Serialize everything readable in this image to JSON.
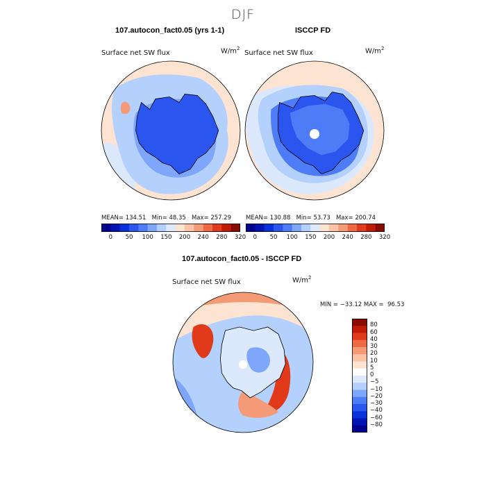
{
  "title": "DJF",
  "panels": {
    "model": {
      "title": "107.autocon_fact0.05 (yrs 1-1)",
      "variable": "Surface net SW flux",
      "units_base": "W/m",
      "units_exp": "2",
      "mean_label": "MEAN=",
      "mean": "134.51",
      "min_label": "Min=",
      "min": "48.35",
      "max_label": "Max=",
      "max": "257.29"
    },
    "obs": {
      "title": "ISCCP FD",
      "variable": "Surface net SW flux",
      "units_base": "W/m",
      "units_exp": "2",
      "mean_label": "MEAN=",
      "mean": "130.88",
      "min_label": "Min=",
      "min": "53.73",
      "max_label": "Max=",
      "max": "200.74"
    },
    "diff": {
      "title": "107.autocon_fact0.05 - ISCCP FD",
      "variable": "Surface net SW flux",
      "units_base": "W/m",
      "units_exp": "2",
      "stats": "MIN = −33.12 MAX =  96.53"
    }
  },
  "colorbars": {
    "abs": {
      "ticks": [
        "0",
        "50",
        "100",
        "150",
        "200",
        "240",
        "280",
        "320"
      ],
      "colors": [
        "#00008f",
        "#0014b4",
        "#0a32dc",
        "#2a55ee",
        "#4e7cf6",
        "#7ea6fb",
        "#b4d0fc",
        "#dce9fd",
        "#fde4d2",
        "#fbc3a6",
        "#f59a76",
        "#ee6a44",
        "#e03a1a",
        "#c11a06",
        "#8a0a00"
      ]
    },
    "diff": {
      "ticks": [
        "80",
        "60",
        "40",
        "30",
        "20",
        "10",
        "5",
        "0",
        "−5",
        "−10",
        "−20",
        "−30",
        "−40",
        "−60",
        "−80"
      ],
      "colors": [
        "#8a0a00",
        "#c11a06",
        "#e03a1a",
        "#ee6a44",
        "#f59a76",
        "#fbc3a6",
        "#fde4d2",
        "#ffffff",
        "#dce9fd",
        "#b4d0fc",
        "#7ea6fb",
        "#4e7cf6",
        "#2a55ee",
        "#0a32dc",
        "#0014b4",
        "#00008f"
      ]
    }
  },
  "map_colors": {
    "antarctica_fill": "#2a55ee",
    "ocean_light_blue": "#b4d0fc",
    "ocean_pale_blue": "#dce9fd",
    "ocean_peach": "#fde4d2",
    "ocean_blue": "#7ea6fb",
    "diff_red": "#e03a1a",
    "diff_orange": "#f59a76",
    "coastline": "#000000",
    "missing": "#ffffff"
  }
}
